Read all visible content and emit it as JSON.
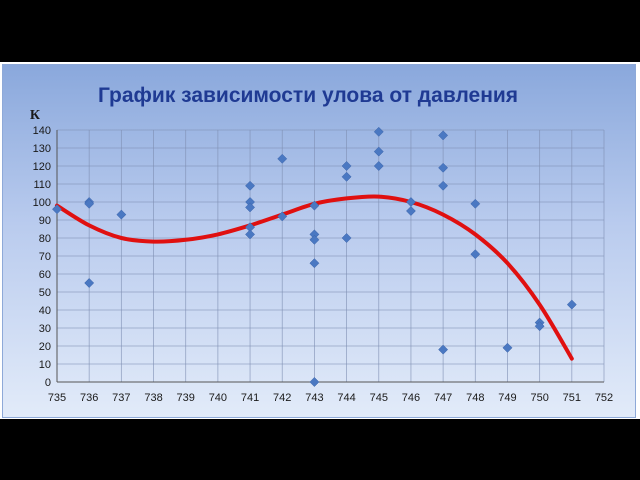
{
  "chart_data": {
    "type": "scatter",
    "title": "График зависимости улова от давления",
    "xlabel": "",
    "ylabel": "К",
    "xlim": [
      735,
      752
    ],
    "ylim": [
      0,
      140
    ],
    "x_ticks": [
      735,
      736,
      737,
      738,
      739,
      740,
      741,
      742,
      743,
      744,
      745,
      746,
      747,
      748,
      749,
      750,
      751,
      752
    ],
    "y_ticks": [
      0,
      10,
      20,
      30,
      40,
      50,
      60,
      70,
      80,
      90,
      100,
      110,
      120,
      130,
      140
    ],
    "grid": true,
    "legend": "none",
    "colors": {
      "points": "#4a78c2",
      "trend": "#e01010"
    },
    "points": [
      {
        "x": 735,
        "y": 96
      },
      {
        "x": 736,
        "y": 100
      },
      {
        "x": 736,
        "y": 99
      },
      {
        "x": 736,
        "y": 55
      },
      {
        "x": 737,
        "y": 93
      },
      {
        "x": 741,
        "y": 109
      },
      {
        "x": 741,
        "y": 100
      },
      {
        "x": 741,
        "y": 97
      },
      {
        "x": 741,
        "y": 86
      },
      {
        "x": 741,
        "y": 82
      },
      {
        "x": 742,
        "y": 124
      },
      {
        "x": 742,
        "y": 92
      },
      {
        "x": 743,
        "y": 98
      },
      {
        "x": 743,
        "y": 82
      },
      {
        "x": 743,
        "y": 79
      },
      {
        "x": 743,
        "y": 66
      },
      {
        "x": 743,
        "y": 0
      },
      {
        "x": 744,
        "y": 120
      },
      {
        "x": 744,
        "y": 114
      },
      {
        "x": 744,
        "y": 80
      },
      {
        "x": 745,
        "y": 139
      },
      {
        "x": 745,
        "y": 128
      },
      {
        "x": 745,
        "y": 120
      },
      {
        "x": 746,
        "y": 100
      },
      {
        "x": 746,
        "y": 95
      },
      {
        "x": 747,
        "y": 137
      },
      {
        "x": 747,
        "y": 119
      },
      {
        "x": 747,
        "y": 109
      },
      {
        "x": 747,
        "y": 18
      },
      {
        "x": 748,
        "y": 99
      },
      {
        "x": 748,
        "y": 71
      },
      {
        "x": 749,
        "y": 19
      },
      {
        "x": 750,
        "y": 33
      },
      {
        "x": 750,
        "y": 31
      },
      {
        "x": 751,
        "y": 43
      }
    ],
    "trendline": {
      "type": "polynomial",
      "x": [
        735,
        736,
        737,
        738,
        739,
        740,
        741,
        742,
        743,
        744,
        745,
        746,
        747,
        748,
        749,
        750,
        751
      ],
      "y": [
        98,
        87,
        80,
        78,
        79,
        82,
        87,
        93,
        99,
        102,
        103,
        100,
        93,
        82,
        66,
        43,
        13
      ]
    }
  }
}
